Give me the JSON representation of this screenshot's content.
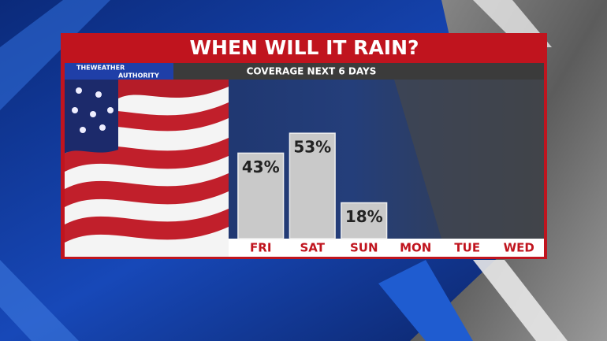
{
  "chart_data": {
    "type": "bar",
    "title": "WHEN WILL IT RAIN?",
    "subtitle": "COVERAGE NEXT 6 DAYS",
    "brand_lines": [
      "THEWEATHER",
      "AUTHORITY"
    ],
    "categories": [
      "FRI",
      "SAT",
      "SUN",
      "MON",
      "TUE",
      "WED"
    ],
    "values": [
      43,
      53,
      18,
      null,
      null,
      null
    ],
    "value_labels": [
      "43%",
      "53%",
      "18%",
      null,
      null,
      null
    ],
    "color": "#c9c9c9",
    "ylim": [
      0,
      80
    ]
  }
}
